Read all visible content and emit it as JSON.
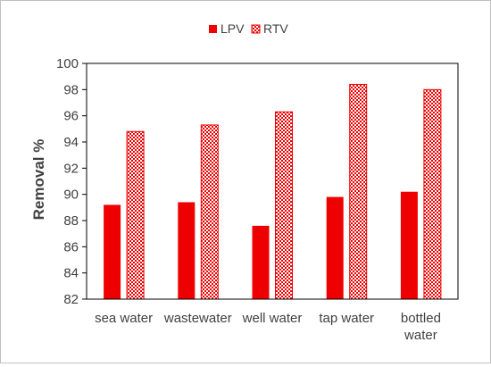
{
  "chart_data": {
    "type": "bar",
    "categories": [
      "sea water",
      "wastewater",
      "well water",
      "tap water",
      "bottled water"
    ],
    "category_lines": [
      [
        "sea water"
      ],
      [
        "wastewater"
      ],
      [
        "well water"
      ],
      [
        "tap water"
      ],
      [
        "bottled",
        "water"
      ]
    ],
    "series": [
      {
        "name": "LPV",
        "values": [
          89.2,
          89.4,
          87.6,
          89.8,
          90.2
        ],
        "color": "#ee0000",
        "pattern": "solid"
      },
      {
        "name": "RTV",
        "values": [
          94.8,
          95.3,
          96.3,
          98.4,
          98.0
        ],
        "color": "#ee0000",
        "pattern": "checkerboard"
      }
    ],
    "xlabel": "",
    "ylabel": "Removal %",
    "ylim": [
      82,
      100
    ],
    "yticks": [
      82,
      84,
      86,
      88,
      90,
      92,
      94,
      96,
      98,
      100
    ],
    "grid": false,
    "legend_position": "top-center"
  }
}
